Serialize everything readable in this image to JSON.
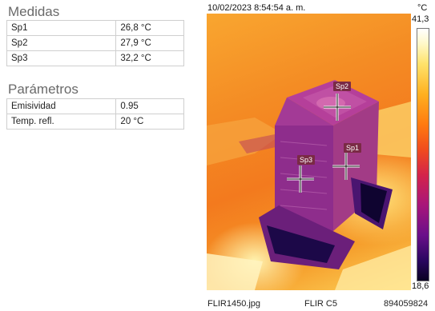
{
  "measurements": {
    "title": "Medidas",
    "rows": [
      {
        "label": "Sp1",
        "value": "26,8 °C"
      },
      {
        "label": "Sp2",
        "value": "27,9 °C"
      },
      {
        "label": "Sp3",
        "value": "32,2 °C"
      }
    ]
  },
  "parameters": {
    "title": "Parámetros",
    "rows": [
      {
        "label": "Emisividad",
        "value": "0.95"
      },
      {
        "label": "Temp. refl.",
        "value": "20 °C"
      }
    ]
  },
  "image": {
    "timestamp": "10/02/2023 8:54:54 a. m.",
    "spot_labels": [
      "Sp2",
      "Sp1",
      "Sp3"
    ]
  },
  "scale": {
    "unit": "°C",
    "max": "41,3",
    "min": "18,6"
  },
  "footer": {
    "filename": "FLIR1450.jpg",
    "camera": "FLIR C5",
    "serial": "894059824"
  },
  "colors": {
    "palette": "iron",
    "hot": "#ffffff",
    "cold": "#0a0222"
  }
}
